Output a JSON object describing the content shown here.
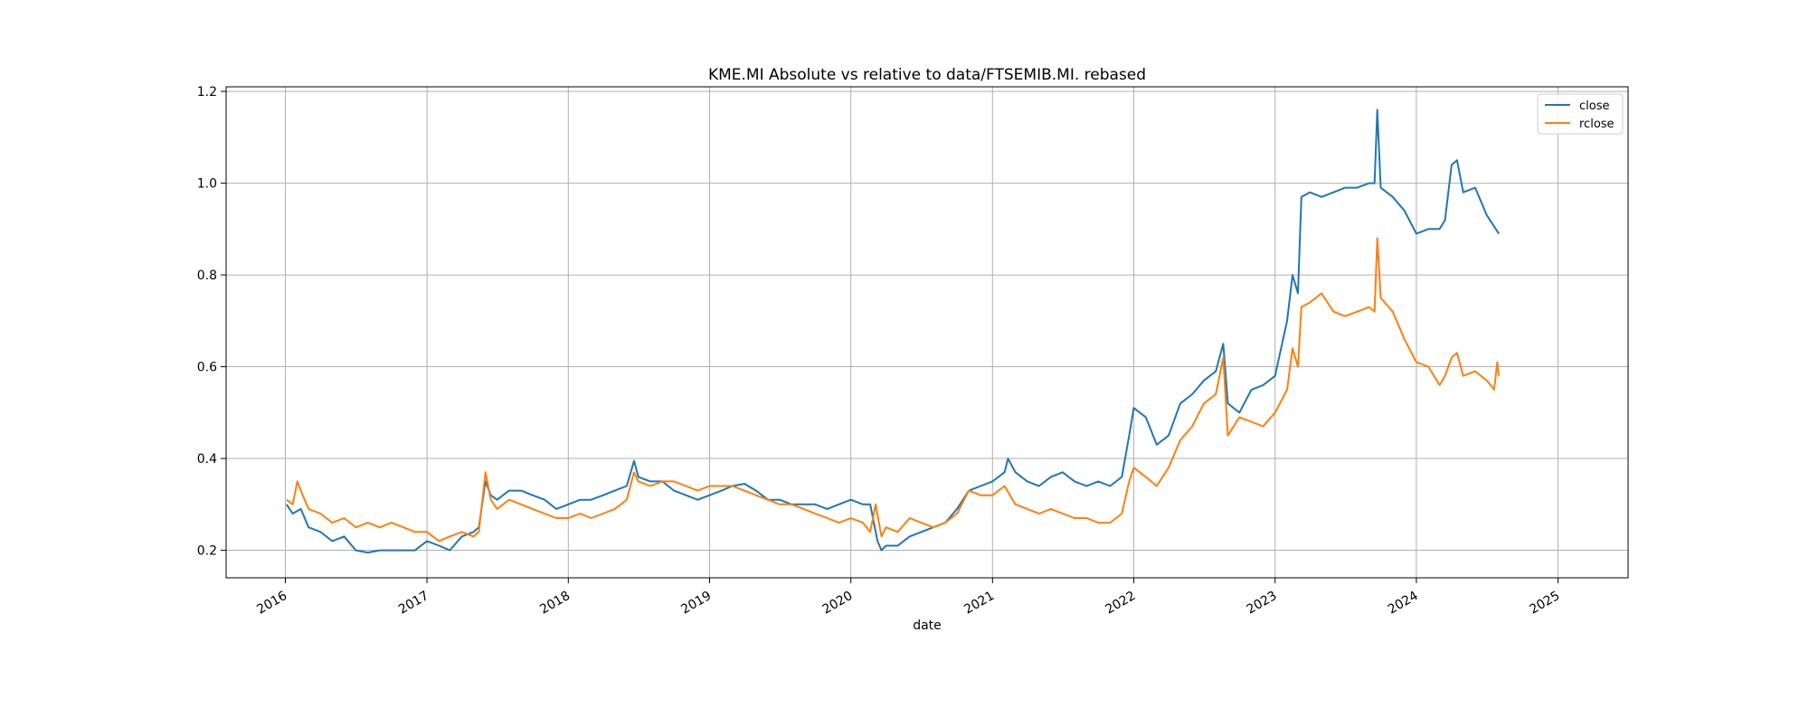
{
  "chart_data": {
    "type": "line",
    "title": "KME.MI Absolute vs relative to data/FTSEMIB.MI. rebased",
    "xlabel": "date",
    "ylabel": "",
    "xlim": [
      "2015-08-01",
      "2025-07-01"
    ],
    "ylim": [
      0.14,
      1.21
    ],
    "grid": true,
    "legend_position": "upper right",
    "xticks": [
      "2016",
      "2017",
      "2018",
      "2019",
      "2020",
      "2021",
      "2022",
      "2023",
      "2024",
      "2025"
    ],
    "yticks": [
      "0.2",
      "0.4",
      "0.6",
      "0.8",
      "1.0",
      "1.2"
    ],
    "series": [
      {
        "name": "close",
        "color": "#1f77b4",
        "points": [
          [
            "2016-01-04",
            0.3
          ],
          [
            "2016-01-20",
            0.28
          ],
          [
            "2016-02-10",
            0.29
          ],
          [
            "2016-03-01",
            0.25
          ],
          [
            "2016-04-01",
            0.24
          ],
          [
            "2016-05-01",
            0.22
          ],
          [
            "2016-06-01",
            0.23
          ],
          [
            "2016-07-01",
            0.2
          ],
          [
            "2016-08-01",
            0.195
          ],
          [
            "2016-09-01",
            0.2
          ],
          [
            "2016-10-01",
            0.2
          ],
          [
            "2016-11-01",
            0.2
          ],
          [
            "2016-12-01",
            0.2
          ],
          [
            "2017-01-01",
            0.22
          ],
          [
            "2017-02-01",
            0.21
          ],
          [
            "2017-03-01",
            0.2
          ],
          [
            "2017-04-01",
            0.23
          ],
          [
            "2017-05-01",
            0.24
          ],
          [
            "2017-05-15",
            0.25
          ],
          [
            "2017-06-01",
            0.35
          ],
          [
            "2017-06-15",
            0.32
          ],
          [
            "2017-07-01",
            0.31
          ],
          [
            "2017-08-01",
            0.33
          ],
          [
            "2017-09-01",
            0.33
          ],
          [
            "2017-10-01",
            0.32
          ],
          [
            "2017-11-01",
            0.31
          ],
          [
            "2017-12-01",
            0.29
          ],
          [
            "2018-01-01",
            0.3
          ],
          [
            "2018-02-01",
            0.31
          ],
          [
            "2018-03-01",
            0.31
          ],
          [
            "2018-04-01",
            0.32
          ],
          [
            "2018-05-01",
            0.33
          ],
          [
            "2018-06-01",
            0.34
          ],
          [
            "2018-06-20",
            0.395
          ],
          [
            "2018-07-01",
            0.36
          ],
          [
            "2018-08-01",
            0.35
          ],
          [
            "2018-09-01",
            0.35
          ],
          [
            "2018-10-01",
            0.33
          ],
          [
            "2018-11-01",
            0.32
          ],
          [
            "2018-12-01",
            0.31
          ],
          [
            "2019-01-01",
            0.32
          ],
          [
            "2019-02-01",
            0.33
          ],
          [
            "2019-03-01",
            0.34
          ],
          [
            "2019-04-01",
            0.345
          ],
          [
            "2019-05-01",
            0.33
          ],
          [
            "2019-06-01",
            0.31
          ],
          [
            "2019-07-01",
            0.31
          ],
          [
            "2019-08-01",
            0.3
          ],
          [
            "2019-09-01",
            0.3
          ],
          [
            "2019-10-01",
            0.3
          ],
          [
            "2019-11-01",
            0.29
          ],
          [
            "2019-12-01",
            0.3
          ],
          [
            "2020-01-01",
            0.31
          ],
          [
            "2020-02-01",
            0.3
          ],
          [
            "2020-02-20",
            0.3
          ],
          [
            "2020-03-10",
            0.22
          ],
          [
            "2020-03-20",
            0.2
          ],
          [
            "2020-04-01",
            0.21
          ],
          [
            "2020-05-01",
            0.21
          ],
          [
            "2020-06-01",
            0.23
          ],
          [
            "2020-07-01",
            0.24
          ],
          [
            "2020-08-01",
            0.25
          ],
          [
            "2020-09-01",
            0.26
          ],
          [
            "2020-10-01",
            0.29
          ],
          [
            "2020-11-01",
            0.33
          ],
          [
            "2020-12-01",
            0.34
          ],
          [
            "2021-01-01",
            0.35
          ],
          [
            "2021-02-01",
            0.37
          ],
          [
            "2021-02-10",
            0.4
          ],
          [
            "2021-03-01",
            0.37
          ],
          [
            "2021-04-01",
            0.35
          ],
          [
            "2021-05-01",
            0.34
          ],
          [
            "2021-06-01",
            0.36
          ],
          [
            "2021-07-01",
            0.37
          ],
          [
            "2021-08-01",
            0.35
          ],
          [
            "2021-09-01",
            0.34
          ],
          [
            "2021-10-01",
            0.35
          ],
          [
            "2021-11-01",
            0.34
          ],
          [
            "2021-12-01",
            0.36
          ],
          [
            "2021-12-20",
            0.45
          ],
          [
            "2022-01-01",
            0.51
          ],
          [
            "2022-02-01",
            0.49
          ],
          [
            "2022-03-01",
            0.43
          ],
          [
            "2022-04-01",
            0.45
          ],
          [
            "2022-05-01",
            0.52
          ],
          [
            "2022-06-01",
            0.54
          ],
          [
            "2022-07-01",
            0.57
          ],
          [
            "2022-08-01",
            0.59
          ],
          [
            "2022-08-20",
            0.65
          ],
          [
            "2022-09-01",
            0.52
          ],
          [
            "2022-10-01",
            0.5
          ],
          [
            "2022-11-01",
            0.55
          ],
          [
            "2022-12-01",
            0.56
          ],
          [
            "2023-01-01",
            0.58
          ],
          [
            "2023-02-01",
            0.7
          ],
          [
            "2023-02-15",
            0.8
          ],
          [
            "2023-03-01",
            0.76
          ],
          [
            "2023-03-10",
            0.97
          ],
          [
            "2023-04-01",
            0.98
          ],
          [
            "2023-05-01",
            0.97
          ],
          [
            "2023-06-01",
            0.98
          ],
          [
            "2023-07-01",
            0.99
          ],
          [
            "2023-08-01",
            0.99
          ],
          [
            "2023-09-01",
            1.0
          ],
          [
            "2023-09-15",
            1.0
          ],
          [
            "2023-09-22",
            1.16
          ],
          [
            "2023-10-01",
            0.99
          ],
          [
            "2023-11-01",
            0.97
          ],
          [
            "2023-12-01",
            0.94
          ],
          [
            "2024-01-01",
            0.89
          ],
          [
            "2024-02-01",
            0.9
          ],
          [
            "2024-03-01",
            0.9
          ],
          [
            "2024-03-15",
            0.92
          ],
          [
            "2024-04-01",
            1.04
          ],
          [
            "2024-04-15",
            1.05
          ],
          [
            "2024-05-01",
            0.98
          ],
          [
            "2024-06-01",
            0.99
          ],
          [
            "2024-07-01",
            0.93
          ],
          [
            "2024-08-01",
            0.89
          ]
        ]
      },
      {
        "name": "rclose",
        "color": "#ff7f0e",
        "points": [
          [
            "2016-01-04",
            0.31
          ],
          [
            "2016-01-20",
            0.3
          ],
          [
            "2016-02-01",
            0.35
          ],
          [
            "2016-02-15",
            0.32
          ],
          [
            "2016-03-01",
            0.29
          ],
          [
            "2016-04-01",
            0.28
          ],
          [
            "2016-05-01",
            0.26
          ],
          [
            "2016-06-01",
            0.27
          ],
          [
            "2016-07-01",
            0.25
          ],
          [
            "2016-08-01",
            0.26
          ],
          [
            "2016-09-01",
            0.25
          ],
          [
            "2016-10-01",
            0.26
          ],
          [
            "2016-11-01",
            0.25
          ],
          [
            "2016-12-01",
            0.24
          ],
          [
            "2017-01-01",
            0.24
          ],
          [
            "2017-02-01",
            0.22
          ],
          [
            "2017-03-01",
            0.23
          ],
          [
            "2017-04-01",
            0.24
          ],
          [
            "2017-05-01",
            0.23
          ],
          [
            "2017-05-15",
            0.24
          ],
          [
            "2017-06-01",
            0.37
          ],
          [
            "2017-06-15",
            0.31
          ],
          [
            "2017-07-01",
            0.29
          ],
          [
            "2017-08-01",
            0.31
          ],
          [
            "2017-09-01",
            0.3
          ],
          [
            "2017-10-01",
            0.29
          ],
          [
            "2017-11-01",
            0.28
          ],
          [
            "2017-12-01",
            0.27
          ],
          [
            "2018-01-01",
            0.27
          ],
          [
            "2018-02-01",
            0.28
          ],
          [
            "2018-03-01",
            0.27
          ],
          [
            "2018-04-01",
            0.28
          ],
          [
            "2018-05-01",
            0.29
          ],
          [
            "2018-06-01",
            0.31
          ],
          [
            "2018-06-20",
            0.37
          ],
          [
            "2018-07-01",
            0.35
          ],
          [
            "2018-08-01",
            0.34
          ],
          [
            "2018-09-01",
            0.35
          ],
          [
            "2018-10-01",
            0.35
          ],
          [
            "2018-11-01",
            0.34
          ],
          [
            "2018-12-01",
            0.33
          ],
          [
            "2019-01-01",
            0.34
          ],
          [
            "2019-02-01",
            0.34
          ],
          [
            "2019-03-01",
            0.34
          ],
          [
            "2019-04-01",
            0.33
          ],
          [
            "2019-05-01",
            0.32
          ],
          [
            "2019-06-01",
            0.31
          ],
          [
            "2019-07-01",
            0.3
          ],
          [
            "2019-08-01",
            0.3
          ],
          [
            "2019-09-01",
            0.29
          ],
          [
            "2019-10-01",
            0.28
          ],
          [
            "2019-11-01",
            0.27
          ],
          [
            "2019-12-01",
            0.26
          ],
          [
            "2020-01-01",
            0.27
          ],
          [
            "2020-02-01",
            0.26
          ],
          [
            "2020-02-20",
            0.24
          ],
          [
            "2020-03-05",
            0.3
          ],
          [
            "2020-03-20",
            0.23
          ],
          [
            "2020-04-01",
            0.25
          ],
          [
            "2020-05-01",
            0.24
          ],
          [
            "2020-06-01",
            0.27
          ],
          [
            "2020-07-01",
            0.26
          ],
          [
            "2020-08-01",
            0.25
          ],
          [
            "2020-09-01",
            0.26
          ],
          [
            "2020-10-01",
            0.28
          ],
          [
            "2020-11-01",
            0.33
          ],
          [
            "2020-12-01",
            0.32
          ],
          [
            "2021-01-01",
            0.32
          ],
          [
            "2021-02-01",
            0.34
          ],
          [
            "2021-03-01",
            0.3
          ],
          [
            "2021-04-01",
            0.29
          ],
          [
            "2021-05-01",
            0.28
          ],
          [
            "2021-06-01",
            0.29
          ],
          [
            "2021-07-01",
            0.28
          ],
          [
            "2021-08-01",
            0.27
          ],
          [
            "2021-09-01",
            0.27
          ],
          [
            "2021-10-01",
            0.26
          ],
          [
            "2021-11-01",
            0.26
          ],
          [
            "2021-12-01",
            0.28
          ],
          [
            "2021-12-20",
            0.35
          ],
          [
            "2022-01-01",
            0.38
          ],
          [
            "2022-02-01",
            0.36
          ],
          [
            "2022-03-01",
            0.34
          ],
          [
            "2022-04-01",
            0.38
          ],
          [
            "2022-05-01",
            0.44
          ],
          [
            "2022-06-01",
            0.47
          ],
          [
            "2022-07-01",
            0.52
          ],
          [
            "2022-08-01",
            0.54
          ],
          [
            "2022-08-20",
            0.62
          ],
          [
            "2022-09-01",
            0.45
          ],
          [
            "2022-10-01",
            0.49
          ],
          [
            "2022-11-01",
            0.48
          ],
          [
            "2022-12-01",
            0.47
          ],
          [
            "2023-01-01",
            0.5
          ],
          [
            "2023-02-01",
            0.55
          ],
          [
            "2023-02-15",
            0.64
          ],
          [
            "2023-03-01",
            0.6
          ],
          [
            "2023-03-10",
            0.73
          ],
          [
            "2023-04-01",
            0.74
          ],
          [
            "2023-05-01",
            0.76
          ],
          [
            "2023-06-01",
            0.72
          ],
          [
            "2023-07-01",
            0.71
          ],
          [
            "2023-08-01",
            0.72
          ],
          [
            "2023-09-01",
            0.73
          ],
          [
            "2023-09-15",
            0.72
          ],
          [
            "2023-09-22",
            0.88
          ],
          [
            "2023-10-01",
            0.75
          ],
          [
            "2023-11-01",
            0.72
          ],
          [
            "2023-12-01",
            0.66
          ],
          [
            "2024-01-01",
            0.61
          ],
          [
            "2024-02-01",
            0.6
          ],
          [
            "2024-03-01",
            0.56
          ],
          [
            "2024-03-15",
            0.58
          ],
          [
            "2024-04-01",
            0.62
          ],
          [
            "2024-04-15",
            0.63
          ],
          [
            "2024-05-01",
            0.58
          ],
          [
            "2024-06-01",
            0.59
          ],
          [
            "2024-07-01",
            0.57
          ],
          [
            "2024-07-20",
            0.55
          ],
          [
            "2024-07-28",
            0.61
          ],
          [
            "2024-08-01",
            0.58
          ]
        ]
      }
    ]
  }
}
